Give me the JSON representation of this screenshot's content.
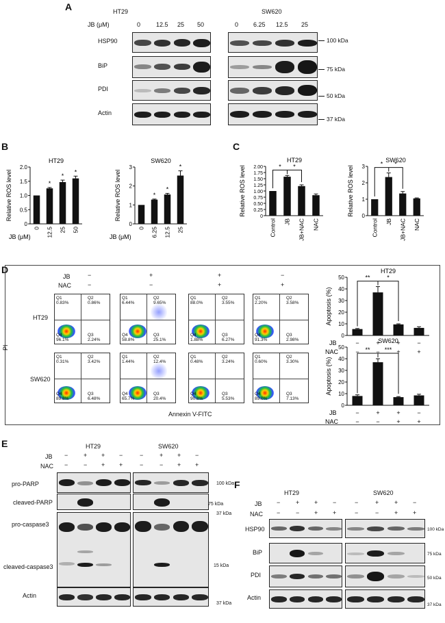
{
  "panelA": {
    "letter": "A",
    "jb_label": "JB (μM)",
    "cell_lines": [
      "HT29",
      "SW620"
    ],
    "ht29_doses": [
      "0",
      "12.5",
      "25",
      "50"
    ],
    "sw620_doses": [
      "0",
      "6.25",
      "12.5",
      "25"
    ],
    "rows": [
      "HSP90",
      "BiP",
      "PDI",
      "Actin"
    ],
    "markers": [
      "100 kDa",
      "75 kDa",
      "50 kDa",
      "37 kDa"
    ]
  },
  "panelB": {
    "letter": "B",
    "ylabel": "Relative ROS level",
    "xprefix": "JB (μM)"
  },
  "panelC": {
    "letter": "C",
    "ylabel": "Relative ROS level"
  },
  "panelD": {
    "letter": "D",
    "jb": "JB",
    "nac": "NAC",
    "plus": "+",
    "minus": "−",
    "pi": "PI",
    "annexin": "Annexin V-FITC",
    "cells": [
      "HT29",
      "SW620"
    ],
    "flow": [
      [
        {
          "q1": "0.83%",
          "q2": "0.86%",
          "q3": "2.24%",
          "q4": "96.1%"
        },
        {
          "q1": "6.44%",
          "q2": "9.65%",
          "q3": "25.1%",
          "q4": "58.8%"
        },
        {
          "q1": "88.0%",
          "q2": "3.55%",
          "q3": "6.27%",
          "q4": "1.88%"
        },
        {
          "q1": "2.20%",
          "q2": "3.58%",
          "q3": "2.98%",
          "q4": "91.3%"
        }
      ],
      [
        {
          "q1": "0.31%",
          "q2": "3.42%",
          "q3": "6.48%",
          "q4": "89.8%"
        },
        {
          "q1": "1.44%",
          "q2": "12.4%",
          "q3": "20.4%",
          "q4": "65.7%"
        },
        {
          "q1": "0.48%",
          "q2": "3.24%",
          "q3": "5.53%",
          "q4": "90.8%"
        },
        {
          "q1": "0.60%",
          "q2": "3.30%",
          "q3": "7.13%",
          "q4": "89.0%"
        }
      ]
    ],
    "ylabel": "Apoptosis (%)"
  },
  "panelE": {
    "letter": "E",
    "cell_lines": [
      "HT29",
      "SW620"
    ],
    "jb": "JB",
    "nac": "NAC",
    "rows": [
      "pro-PARP",
      "cleaved-PARP",
      "pro-caspase3",
      "cleaved-caspase3",
      "Actin"
    ],
    "markers": [
      "100 kDa",
      "75 kDa",
      "37 kDa",
      "15 kDa",
      "37 kDa"
    ]
  },
  "panelF": {
    "letter": "F",
    "cell_lines": [
      "HT29",
      "SW620"
    ],
    "jb": "JB",
    "nac": "NAC",
    "rows": [
      "HSP90",
      "BiP",
      "PDI",
      "Actin"
    ],
    "markers": [
      "100 kDa",
      "75 kDa",
      "50 kDa",
      "37 kDa"
    ]
  },
  "chart_data": [
    {
      "type": "bar",
      "title": "HT29",
      "categories": [
        "0",
        "12.5",
        "25",
        "50"
      ],
      "values": [
        1.0,
        1.25,
        1.47,
        1.6
      ],
      "errors": [
        0,
        0.03,
        0.07,
        0.08
      ],
      "sig": [
        "",
        "*",
        "*",
        "*"
      ],
      "xlabel": "JB (μM)",
      "ylabel": "Relative ROS level",
      "ylim": [
        0,
        2.0
      ],
      "yticks": [
        "0",
        "0.5",
        "1.0",
        "1.5",
        "2.0"
      ]
    },
    {
      "type": "bar",
      "title": "SW620",
      "categories": [
        "0",
        "6.25",
        "12.5",
        "25"
      ],
      "values": [
        1.0,
        1.28,
        1.55,
        2.55
      ],
      "errors": [
        0,
        0.03,
        0.06,
        0.25
      ],
      "sig": [
        "",
        "*",
        "*",
        "*"
      ],
      "xlabel": "JB (μM)",
      "ylabel": "Relative ROS level",
      "ylim": [
        0,
        3
      ],
      "yticks": [
        "0",
        "1",
        "2",
        "3"
      ]
    },
    {
      "type": "bar",
      "title": "HT29",
      "categories": [
        "Control",
        "JB",
        "JB+NAC",
        "NAC"
      ],
      "values": [
        1.0,
        1.58,
        1.2,
        0.83
      ],
      "errors": [
        0,
        0.05,
        0.05,
        0.05
      ],
      "ylabel": "Relative ROS level",
      "ylim": [
        0,
        2.0
      ],
      "yticks": [
        "0",
        "0.25",
        "0.50",
        "0.75",
        "1.00",
        "1.25",
        "1.50",
        "1.75",
        "2.00"
      ],
      "sig_brackets": [
        "*",
        "*"
      ]
    },
    {
      "type": "bar",
      "title": "SW620",
      "categories": [
        "Control",
        "JB",
        "JB+NAC",
        "NAC"
      ],
      "values": [
        1.0,
        2.35,
        1.35,
        1.05
      ],
      "errors": [
        0,
        0.25,
        0.12,
        0.03
      ],
      "ylabel": "Relative ROS level",
      "ylim": [
        0,
        3
      ],
      "yticks": [
        "0",
        "1",
        "2",
        "3"
      ],
      "sig_brackets": [
        "*",
        "*"
      ]
    },
    {
      "type": "bar",
      "title": "HT29",
      "categories": [
        "JB−/NAC−",
        "JB+/NAC−",
        "JB+/NAC+",
        "JB−/NAC+"
      ],
      "values": [
        5.5,
        37,
        9.5,
        6.5
      ],
      "errors": [
        0.5,
        5,
        0.5,
        1
      ],
      "ylabel": "Apoptosis (%)",
      "ylim": [
        0,
        50
      ],
      "yticks": [
        "0",
        "10",
        "20",
        "30",
        "40",
        "50"
      ],
      "sig_brackets": [
        "**",
        "*"
      ]
    },
    {
      "type": "bar",
      "title": "SW620",
      "categories": [
        "JB−/NAC−",
        "JB+/NAC−",
        "JB+/NAC+",
        "JB−/NAC+"
      ],
      "values": [
        8,
        37,
        7,
        8.5
      ],
      "errors": [
        1,
        3,
        0.5,
        1
      ],
      "ylabel": "Apoptosis (%)",
      "ylim": [
        0,
        50
      ],
      "yticks": [
        "0",
        "10",
        "20",
        "30",
        "40",
        "50"
      ],
      "sig_brackets": [
        "**",
        "***"
      ]
    }
  ]
}
